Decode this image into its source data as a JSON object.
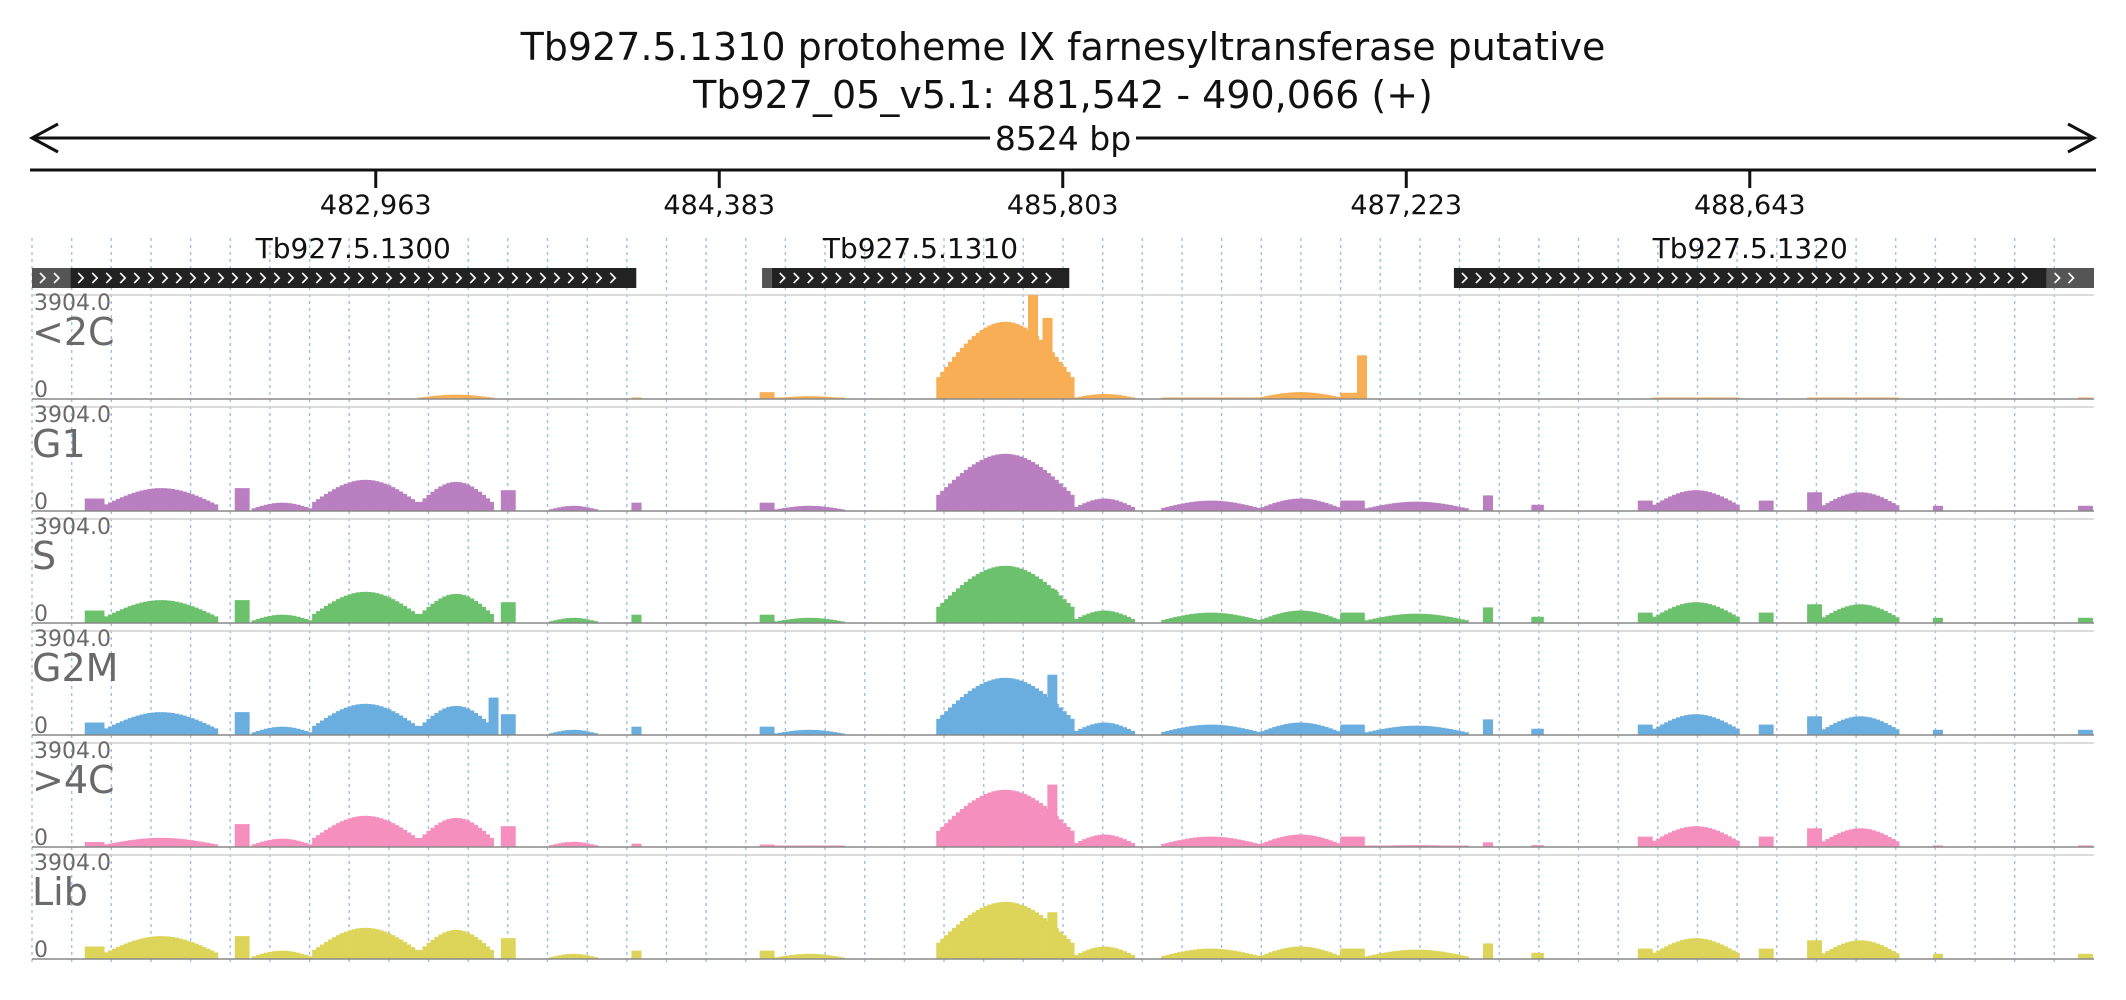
{
  "title": "Tb927.5.1310  protoheme IX farnesyltransferase  putative",
  "subtitle": "Tb927_05_v5.1: 481,542 - 490,066 (+)",
  "span_label": "8524 bp",
  "chart_data": {
    "type": "bar",
    "title": "Tb927.5.1310  protoheme IX farnesyltransferase  putative",
    "subtitle": "Tb927_05_v5.1: 481,542 - 490,066 (+)",
    "xlim": [
      481542,
      490066
    ],
    "ylim": [
      0,
      3904.0
    ],
    "x_ticks": [
      482963,
      484383,
      485803,
      487223,
      488643
    ],
    "x_tick_labels": [
      "482,963",
      "484,383",
      "485,803",
      "487,223",
      "488,643"
    ],
    "grid": true,
    "genes": [
      {
        "name": "",
        "start": 481542,
        "end": 481700,
        "strand": "+",
        "color": "#555555"
      },
      {
        "name": "Tb927.5.1300",
        "start": 481700,
        "end": 484040,
        "strand": "+",
        "color": "#222222"
      },
      {
        "name": "",
        "start": 484560,
        "end": 484600,
        "strand": "+",
        "color": "#555555"
      },
      {
        "name": "Tb927.5.1310",
        "start": 484600,
        "end": 485830,
        "strand": "+",
        "color": "#222222"
      },
      {
        "name": "Tb927.5.1320",
        "start": 487420,
        "end": 489870,
        "strand": "+",
        "color": "#222222"
      },
      {
        "name": "",
        "start": 489870,
        "end": 490066,
        "strand": "+",
        "color": "#555555"
      }
    ],
    "regions": [
      {
        "start": 481760,
        "end": 481840,
        "shape": "flat",
        "rel": 0.12
      },
      {
        "start": 481840,
        "end": 482310,
        "shape": "arc",
        "rel": 0.22
      },
      {
        "start": 482380,
        "end": 482440,
        "shape": "flat",
        "rel": 0.22
      },
      {
        "start": 482450,
        "end": 482700,
        "shape": "arc",
        "rel": 0.08
      },
      {
        "start": 482700,
        "end": 483140,
        "shape": "arc",
        "rel": 0.3
      },
      {
        "start": 483140,
        "end": 483450,
        "shape": "arc",
        "rel": 0.28
      },
      {
        "start": 483480,
        "end": 483540,
        "shape": "flat",
        "rel": 0.2
      },
      {
        "start": 483680,
        "end": 483880,
        "shape": "arc",
        "rel": 0.05
      },
      {
        "start": 484020,
        "end": 484060,
        "shape": "flat",
        "rel": 0.08
      },
      {
        "start": 484550,
        "end": 484610,
        "shape": "flat",
        "rel": 0.08
      },
      {
        "start": 484610,
        "end": 484900,
        "shape": "arc",
        "rel": 0.05
      },
      {
        "start": 485280,
        "end": 485850,
        "shape": "arc",
        "rel": 0.55
      },
      {
        "start": 485850,
        "end": 486100,
        "shape": "arc",
        "rel": 0.12
      },
      {
        "start": 486210,
        "end": 486620,
        "shape": "arc",
        "rel": 0.1
      },
      {
        "start": 486620,
        "end": 486950,
        "shape": "arc",
        "rel": 0.12
      },
      {
        "start": 486950,
        "end": 487050,
        "shape": "flat",
        "rel": 0.1
      },
      {
        "start": 487050,
        "end": 487480,
        "shape": "arc",
        "rel": 0.09
      },
      {
        "start": 487540,
        "end": 487580,
        "shape": "flat",
        "rel": 0.15
      },
      {
        "start": 487740,
        "end": 487790,
        "shape": "flat",
        "rel": 0.06
      },
      {
        "start": 488180,
        "end": 488240,
        "shape": "flat",
        "rel": 0.1
      },
      {
        "start": 488240,
        "end": 488600,
        "shape": "arc",
        "rel": 0.2
      },
      {
        "start": 488680,
        "end": 488740,
        "shape": "flat",
        "rel": 0.1
      },
      {
        "start": 488880,
        "end": 488940,
        "shape": "flat",
        "rel": 0.18
      },
      {
        "start": 488940,
        "end": 489260,
        "shape": "arc",
        "rel": 0.18
      },
      {
        "start": 489400,
        "end": 489440,
        "shape": "flat",
        "rel": 0.05
      },
      {
        "start": 490000,
        "end": 490060,
        "shape": "flat",
        "rel": 0.05
      }
    ],
    "series": [
      {
        "name": "<2C",
        "color": "#f7ae55",
        "weights": [
          0.0,
          0.0,
          0.0,
          0.0,
          0.0,
          0.15,
          0.0,
          0.0,
          0.03,
          0.82,
          0.55,
          1.35,
          0.4,
          0.1,
          0.55,
          0.6,
          0.0,
          0.0,
          0.0,
          0.0,
          0.02,
          0.0,
          0.03,
          0.02,
          0.0,
          0.02
        ],
        "spikes": [
          {
            "x": 485680,
            "rel": 1.0
          },
          {
            "x": 485740,
            "rel": 0.78
          },
          {
            "x": 485610,
            "rel": 0.7
          },
          {
            "x": 487040,
            "rel": 0.42
          }
        ]
      },
      {
        "name": "G1",
        "color": "#b97fc0",
        "weights": [
          1,
          1,
          1,
          1,
          1,
          1,
          1,
          1,
          1,
          1,
          1,
          1,
          1,
          1,
          1,
          1,
          1,
          1,
          1,
          1,
          1,
          1,
          1,
          1,
          1,
          1
        ],
        "spikes": [
          {
            "x": 485760,
            "rel": 0.28
          }
        ]
      },
      {
        "name": "S",
        "color": "#6cc26c",
        "weights": [
          1,
          1,
          1,
          1,
          1,
          1,
          1,
          1,
          1,
          1,
          1,
          1,
          1,
          1,
          1,
          1,
          1,
          1,
          1,
          1,
          1,
          1,
          1,
          1,
          1,
          1
        ],
        "spikes": [
          {
            "x": 485760,
            "rel": 0.32
          }
        ]
      },
      {
        "name": "G2M",
        "color": "#6aaee0",
        "weights": [
          1,
          1,
          1,
          1,
          1,
          1,
          1,
          1,
          1,
          1,
          1,
          1,
          1,
          1,
          1,
          1,
          1,
          1,
          1,
          1,
          1,
          1,
          1,
          1,
          1,
          1
        ],
        "spikes": [
          {
            "x": 485760,
            "rel": 0.58
          },
          {
            "x": 483450,
            "rel": 0.36
          }
        ]
      },
      {
        "name": ">4C",
        "color": "#f48fbe",
        "weights": [
          0.4,
          0.4,
          1,
          1,
          1,
          1,
          1,
          1,
          0.4,
          0.3,
          0.3,
          1,
          1,
          1,
          1,
          1,
          0.2,
          0.3,
          0.3,
          1,
          1,
          1,
          1,
          1,
          0.3,
          0.3
        ],
        "spikes": [
          {
            "x": 485760,
            "rel": 0.6
          }
        ]
      },
      {
        "name": "Lib",
        "color": "#dcd55a",
        "weights": [
          1,
          1,
          1,
          1,
          1,
          1,
          1,
          1,
          1,
          1,
          1,
          1,
          1,
          1,
          1,
          1,
          1,
          1,
          1,
          1,
          1,
          1,
          1,
          1,
          1,
          1
        ],
        "spikes": [
          {
            "x": 485760,
            "rel": 0.45
          }
        ]
      }
    ]
  }
}
